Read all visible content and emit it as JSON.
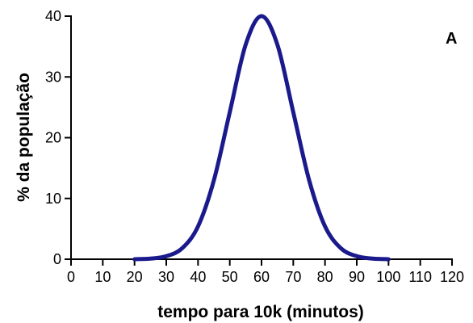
{
  "chart_data": {
    "type": "line",
    "title": "",
    "panel_label": "A",
    "xlabel": "tempo para 10k (minutos)",
    "ylabel": "% da população",
    "xlim": [
      0,
      120
    ],
    "ylim": [
      0,
      40
    ],
    "x_ticks": [
      0,
      10,
      20,
      30,
      40,
      50,
      60,
      70,
      80,
      90,
      100,
      110,
      120
    ],
    "y_ticks": [
      0,
      10,
      20,
      30,
      40
    ],
    "grid": false,
    "line_color": "#1a1a8c",
    "series": [
      {
        "x": [
          20,
          25,
          30,
          35,
          40,
          45,
          50,
          55,
          60,
          65,
          70,
          75,
          80,
          85,
          90,
          95,
          100
        ],
        "y": [
          0.0,
          0.1,
          0.5,
          1.8,
          5.4,
          13.0,
          24.2,
          35.3,
          40.0,
          35.3,
          24.2,
          13.0,
          5.4,
          1.8,
          0.5,
          0.1,
          0.0
        ]
      }
    ]
  }
}
